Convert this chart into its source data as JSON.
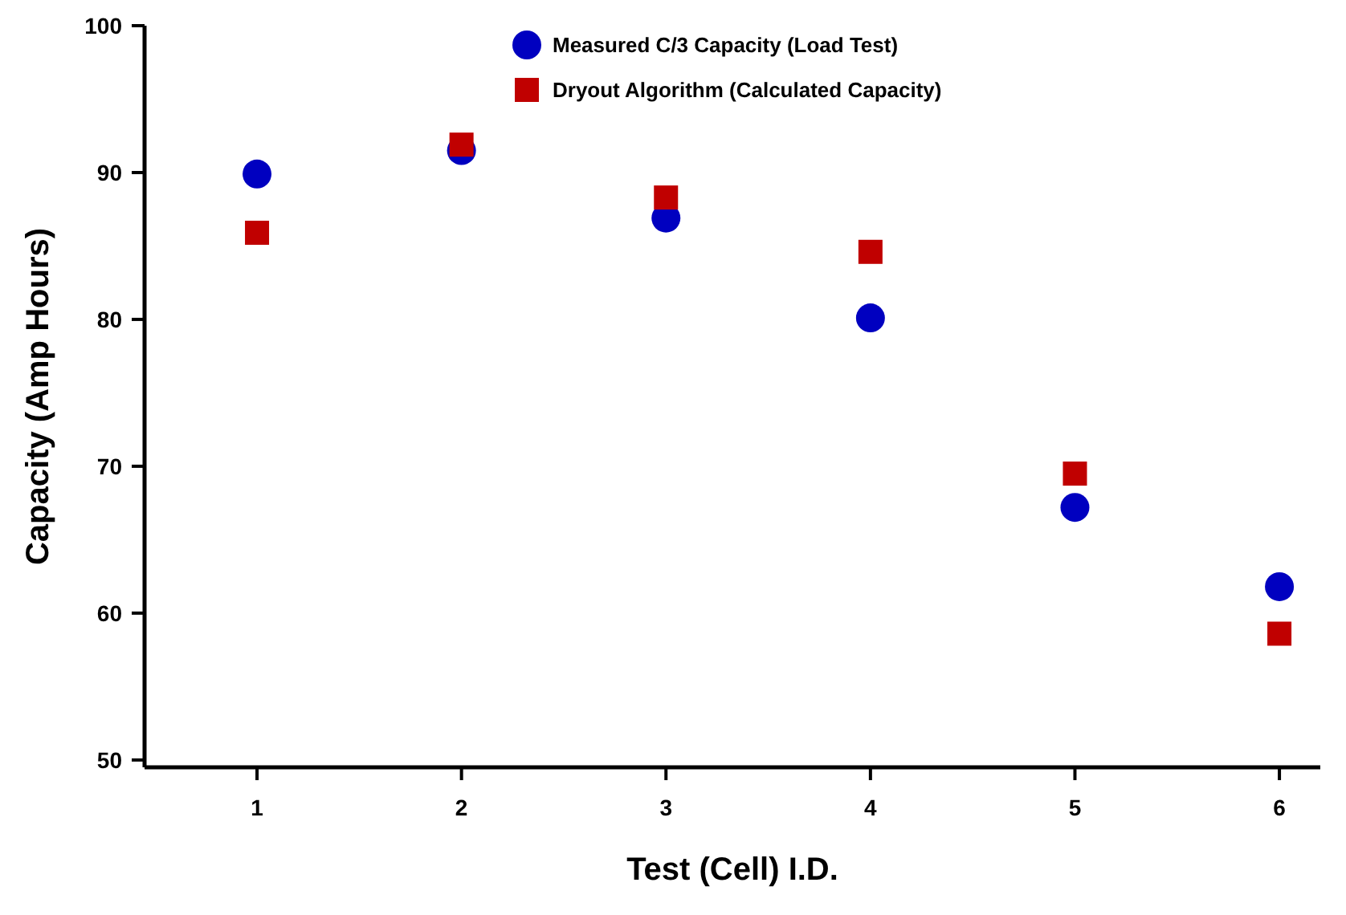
{
  "chart_data": {
    "type": "scatter",
    "xlabel": "Test (Cell) I.D.",
    "ylabel": "Capacity (Amp Hours)",
    "x": [
      1,
      2,
      3,
      4,
      5,
      6
    ],
    "series": [
      {
        "name": "Measured C/3 Capacity (Load Test)",
        "color": "#0000c0",
        "marker": "circle",
        "values": [
          89.9,
          91.5,
          86.9,
          80.1,
          67.2,
          61.8
        ]
      },
      {
        "name": "Dryout Algorithm (Calculated Capacity)",
        "color": "#c00000",
        "marker": "square",
        "values": [
          85.9,
          91.9,
          88.3,
          84.6,
          69.5,
          58.6
        ]
      }
    ],
    "xlim": [
      0.45,
      6.2
    ],
    "xticks": [
      1,
      2,
      3,
      4,
      5,
      6
    ],
    "ylim": [
      49.5,
      100
    ],
    "yticks": [
      50,
      60,
      70,
      80,
      90,
      100
    ],
    "grid": false,
    "legend": "top"
  }
}
